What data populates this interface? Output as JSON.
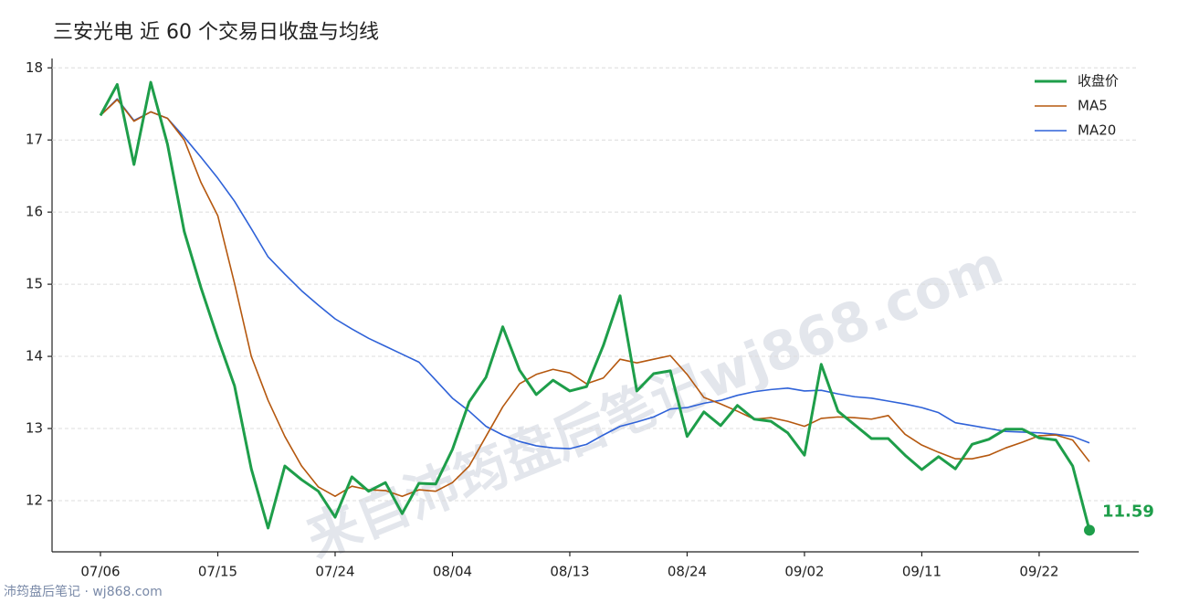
{
  "chart_data": {
    "type": "line",
    "title": "三安光电 近 60 个交易日收盘与均线",
    "watermark": "来自沛筠盘后笔记wj868.com",
    "footer": "沛筠盘后笔记 · wj868.com",
    "categories": [
      "07/06",
      null,
      null,
      null,
      null,
      null,
      null,
      "07/15",
      null,
      null,
      null,
      null,
      null,
      null,
      "07/24",
      null,
      null,
      null,
      null,
      null,
      null,
      "08/04",
      null,
      null,
      null,
      null,
      null,
      null,
      "08/13",
      null,
      null,
      null,
      null,
      null,
      null,
      "08/24",
      null,
      null,
      null,
      null,
      null,
      null,
      "09/02",
      null,
      null,
      null,
      null,
      null,
      null,
      "09/11",
      null,
      null,
      null,
      null,
      null,
      null,
      "09/22",
      null,
      null,
      null
    ],
    "series": [
      {
        "name": "收盘价",
        "color": "#1e9e4a",
        "width": 3,
        "values": [
          17.34,
          17.77,
          16.66,
          17.8,
          16.94,
          15.73,
          14.95,
          14.25,
          13.59,
          12.44,
          11.62,
          12.48,
          12.29,
          12.13,
          11.77,
          12.33,
          12.13,
          12.25,
          11.82,
          12.24,
          12.23,
          12.71,
          13.37,
          13.71,
          14.41,
          13.81,
          13.47,
          13.67,
          13.52,
          13.58,
          14.15,
          14.84,
          13.52,
          13.76,
          13.8,
          12.89,
          13.23,
          13.04,
          13.32,
          13.13,
          13.1,
          12.94,
          12.63,
          13.89,
          13.24,
          13.05,
          12.86,
          12.86,
          12.63,
          12.43,
          12.61,
          12.44,
          12.78,
          12.85,
          12.99,
          12.99,
          12.87,
          12.84,
          12.48,
          11.59
        ]
      },
      {
        "name": "MA5",
        "color": "#b5580f",
        "width": 1.6,
        "values": [
          17.34,
          17.56,
          17.26,
          17.39,
          17.3,
          17.0,
          16.41,
          15.95,
          15.01,
          14.0,
          13.39,
          12.89,
          12.48,
          12.19,
          12.06,
          12.2,
          12.15,
          12.14,
          12.06,
          12.15,
          12.13,
          12.25,
          12.48,
          12.89,
          13.3,
          13.62,
          13.75,
          13.82,
          13.77,
          13.62,
          13.7,
          13.96,
          13.91,
          13.96,
          14.01,
          13.75,
          13.43,
          13.34,
          13.24,
          13.13,
          13.15,
          13.1,
          13.03,
          13.14,
          13.16,
          13.15,
          13.13,
          13.18,
          12.92,
          12.77,
          12.67,
          12.58,
          12.58,
          12.63,
          12.73,
          12.81,
          12.9,
          12.91,
          12.84,
          12.54
        ]
      },
      {
        "name": "MA20",
        "color": "#2f62d8",
        "width": 1.6,
        "values": [
          17.34,
          17.57,
          17.27,
          17.39,
          17.3,
          17.04,
          16.76,
          16.47,
          16.15,
          15.77,
          15.38,
          15.14,
          14.91,
          14.71,
          14.52,
          14.38,
          14.25,
          14.14,
          14.03,
          13.92,
          13.67,
          13.42,
          13.24,
          13.03,
          12.91,
          12.82,
          12.76,
          12.73,
          12.72,
          12.78,
          12.91,
          13.03,
          13.09,
          13.16,
          13.27,
          13.29,
          13.35,
          13.39,
          13.46,
          13.51,
          13.54,
          13.56,
          13.52,
          13.53,
          13.48,
          13.44,
          13.42,
          13.38,
          13.34,
          13.29,
          13.22,
          13.08,
          13.04,
          13.0,
          12.96,
          12.95,
          12.94,
          12.92,
          12.89,
          12.8
        ]
      }
    ],
    "ylim": [
      11.29,
      18.13
    ],
    "yticks": [
      12,
      13,
      14,
      15,
      16,
      17,
      18
    ],
    "grid": true,
    "legend": "upper right"
  }
}
